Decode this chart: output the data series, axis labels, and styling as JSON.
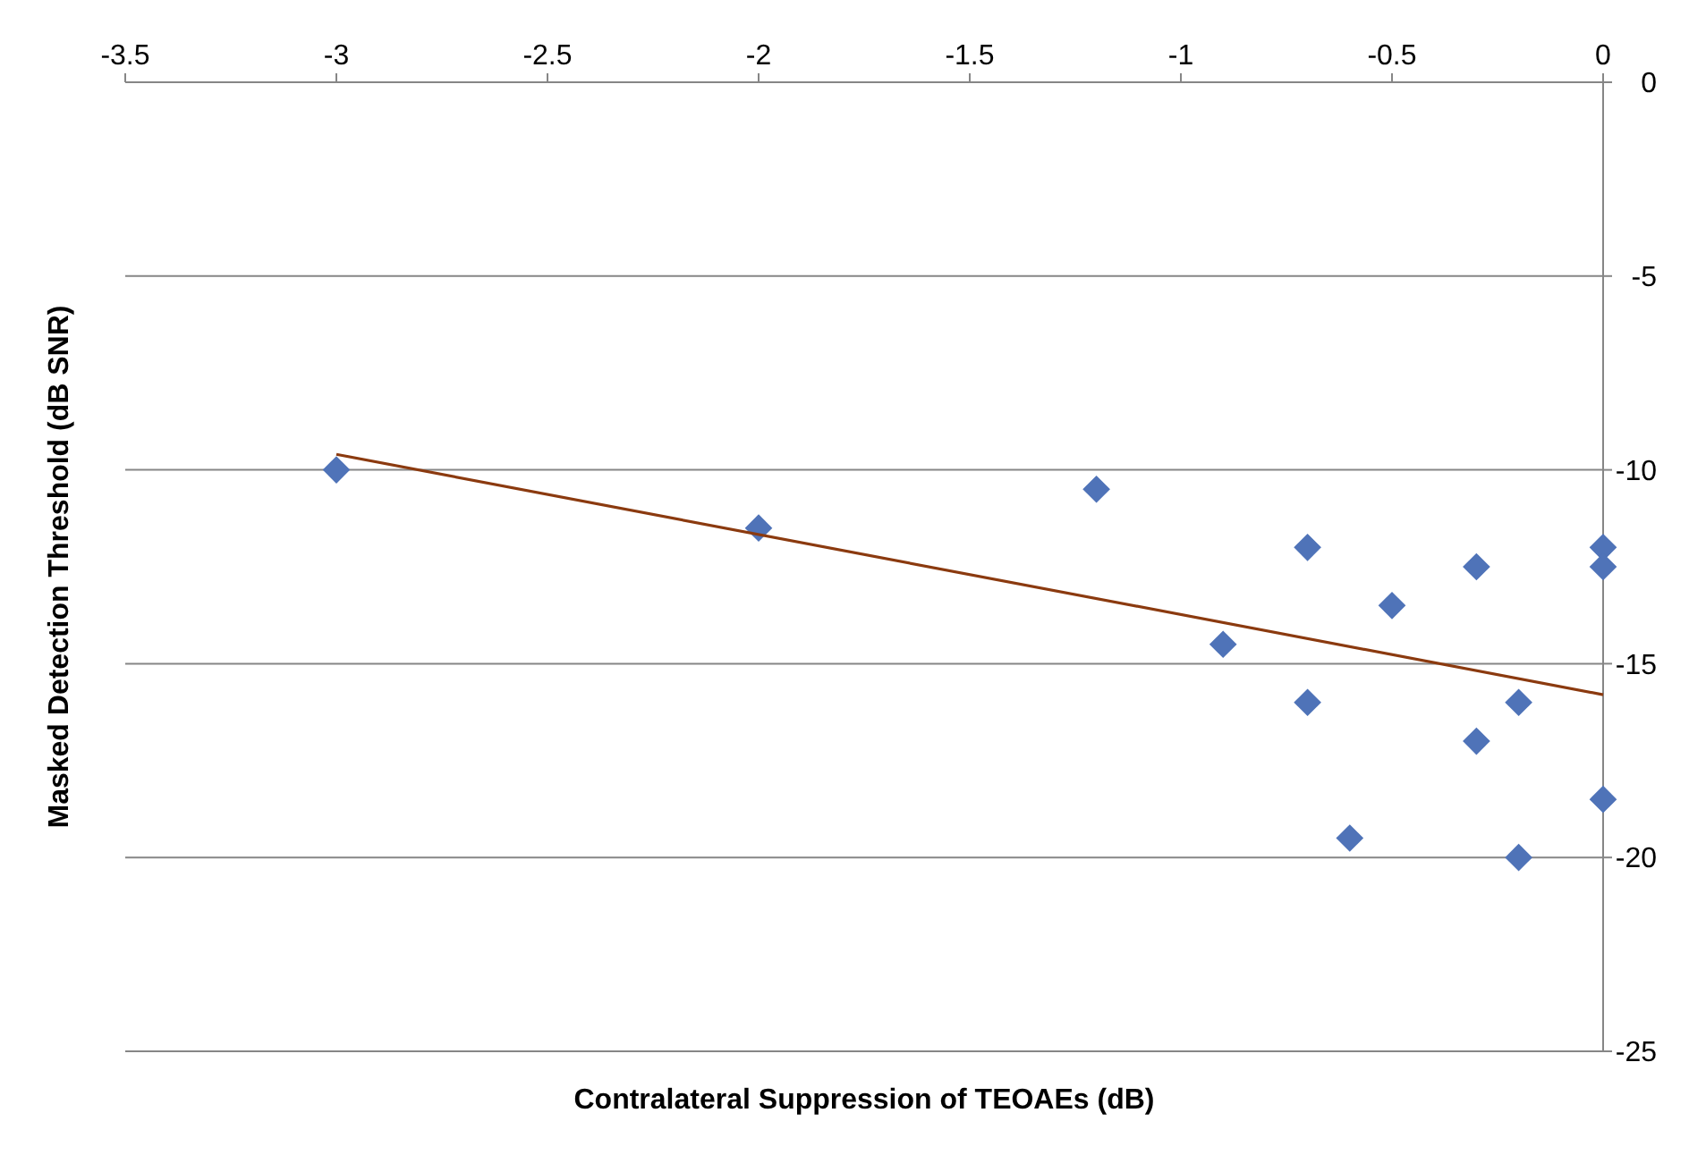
{
  "chart_data": {
    "type": "scatter",
    "xlabel": "Contralateral Suppression of TEOAEs (dB)",
    "ylabel": "Masked Detection Threshold (dB SNR)",
    "xlim": [
      -3.5,
      0
    ],
    "xticks": [
      -3.5,
      -3,
      -2.5,
      -2,
      -1.5,
      -1,
      -0.5,
      0
    ],
    "ylim": [
      -25,
      0
    ],
    "yticks": [
      -25,
      -20,
      -15,
      -10,
      -5,
      0
    ],
    "grid": "y",
    "marker": "diamond",
    "series": [
      {
        "color": "#4f73b8",
        "x": [
          -3,
          -2,
          -1.2,
          -0.9,
          -0.7,
          -0.7,
          -0.6,
          -0.5,
          -0.3,
          -0.3,
          -0.2,
          -0.2,
          0,
          0,
          0
        ],
        "values": [
          -10,
          -11.5,
          -10.5,
          -14.5,
          -12,
          -16,
          -19.5,
          -13.5,
          -12.5,
          -17,
          -16,
          -20,
          -12,
          -12.5,
          -18.5
        ]
      },
      {
        "type": "line",
        "color": "#8b3a0f",
        "marker": "none",
        "line_style": "solid",
        "x": [
          -3,
          0
        ],
        "values": [
          -9.6,
          -15.8
        ]
      }
    ]
  }
}
